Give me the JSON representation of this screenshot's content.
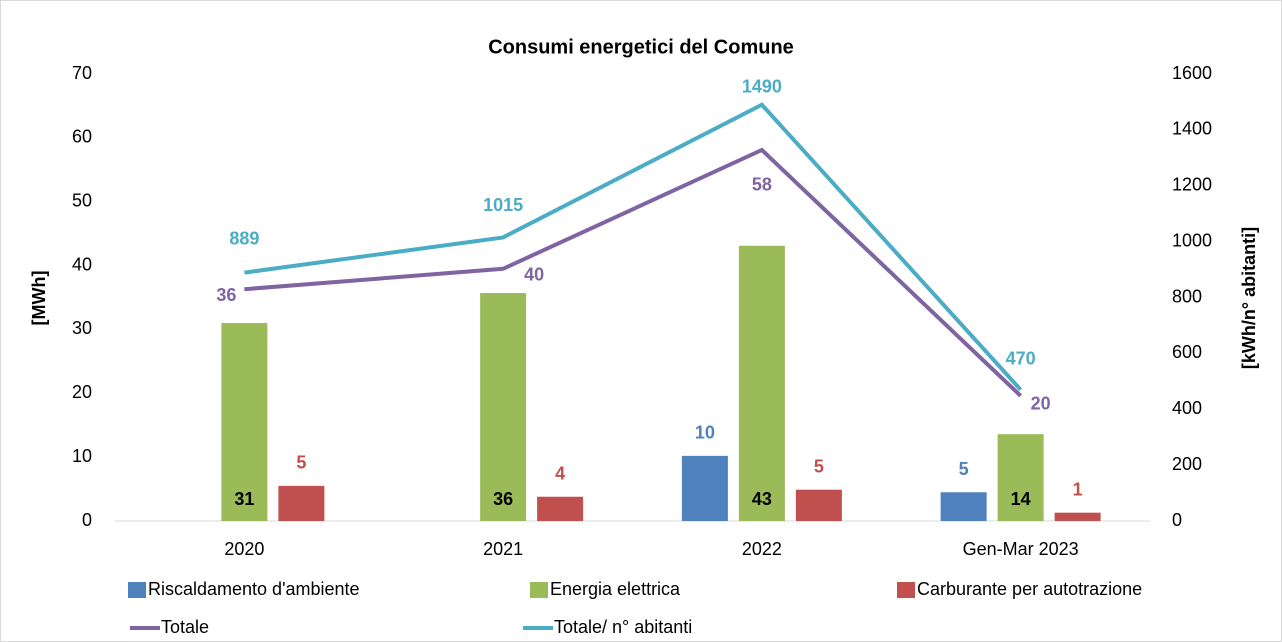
{
  "chart_data": {
    "type": "bar-line",
    "title": "Consumi energetici del Comune",
    "y_label": "[MWh]",
    "y2_label": "[kWh/n° abitanti]",
    "categories": [
      "2020",
      "2021",
      "2022",
      "Gen-Mar 2023"
    ],
    "ylim": [
      0,
      70
    ],
    "yticks": [
      0,
      10,
      20,
      30,
      40,
      50,
      60,
      70
    ],
    "y2lim": [
      0,
      1600
    ],
    "y2ticks": [
      0,
      200,
      400,
      600,
      800,
      1000,
      1200,
      1400,
      1600
    ],
    "series": [
      {
        "name": "Riscaldamento d'ambiente",
        "type": "bar",
        "color": "#4f81bd",
        "values": [
          null,
          null,
          10.2,
          4.5
        ],
        "value_labels": [
          null,
          null,
          "10",
          "5"
        ]
      },
      {
        "name": "Energia elettrica",
        "type": "bar",
        "color": "#9bbb59",
        "values": [
          31.0,
          35.7,
          43.1,
          13.6
        ],
        "value_labels": [
          "31",
          "36",
          "43",
          "14"
        ]
      },
      {
        "name": "Carburante per autotrazione",
        "type": "bar",
        "color": "#c0504d",
        "values": [
          5.5,
          3.8,
          4.9,
          1.3
        ],
        "value_labels": [
          "5",
          "4",
          "5",
          "1"
        ]
      },
      {
        "name": "Totale",
        "type": "line",
        "color": "#8064a2",
        "values": [
          36.3,
          39.5,
          58.1,
          19.6
        ],
        "value_labels": [
          "36",
          "40",
          "58",
          "20"
        ]
      },
      {
        "name": "Totale/ n° abitanti",
        "type": "line",
        "axis": "y2",
        "color": "#4bacc6",
        "values": [
          889,
          1015,
          1490,
          470
        ]
      }
    ]
  }
}
